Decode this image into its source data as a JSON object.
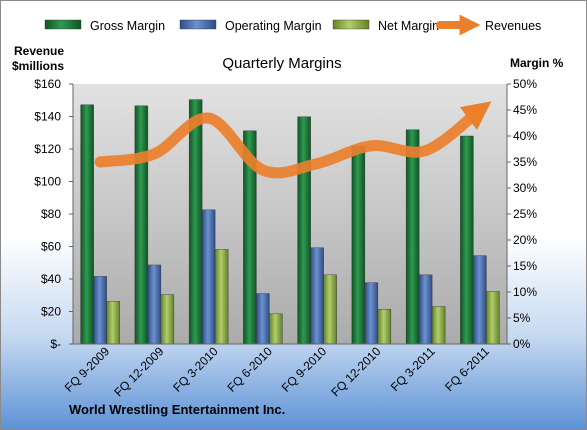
{
  "chart_data": {
    "type": "bar",
    "title": "Quarterly Margins",
    "footer": "World Wrestling Entertainment Inc.",
    "y_left_label_line1": "Revenue",
    "y_left_label_line2": "$millions",
    "y_right_label": "Margin %",
    "categories": [
      "FQ 9-2009",
      "FQ 12-2009",
      "FQ 3-2010",
      "FQ 6-2010",
      "FQ 9-2010",
      "FQ 12-2010",
      "FQ 3-2011",
      "FQ 6-2011"
    ],
    "y_left_ticks": [
      "$-",
      "$20",
      "$40",
      "$60",
      "$80",
      "$100",
      "$120",
      "$140",
      "$160"
    ],
    "y_right_ticks": [
      "0%",
      "5%",
      "10%",
      "15%",
      "20%",
      "25%",
      "30%",
      "35%",
      "40%",
      "45%",
      "50%"
    ],
    "ylim_left": [
      0,
      160
    ],
    "ylim_right": [
      0,
      50
    ],
    "series": [
      {
        "name": "Gross Margin",
        "type": "bar",
        "axis": "right",
        "color": "#1f7a3a",
        "values": [
          46,
          45.8,
          47,
          41,
          43.7,
          38,
          41.2,
          40
        ]
      },
      {
        "name": "Operating Margin",
        "type": "bar",
        "axis": "right",
        "color": "#4a6fb0",
        "values": [
          13,
          15.2,
          25.8,
          9.7,
          18.5,
          11.8,
          13.3,
          17
        ]
      },
      {
        "name": "Net Margin",
        "type": "bar",
        "axis": "right",
        "color": "#8fb046",
        "values": [
          8.2,
          9.5,
          18.2,
          5.8,
          13.3,
          6.7,
          7.2,
          10.1
        ]
      },
      {
        "name": "Revenues",
        "type": "line",
        "axis": "left",
        "color": "#ea7f2c",
        "values": [
          112,
          117,
          139,
          107,
          111,
          122,
          119,
          144
        ]
      }
    ],
    "legend_position": "top",
    "grid": false
  }
}
